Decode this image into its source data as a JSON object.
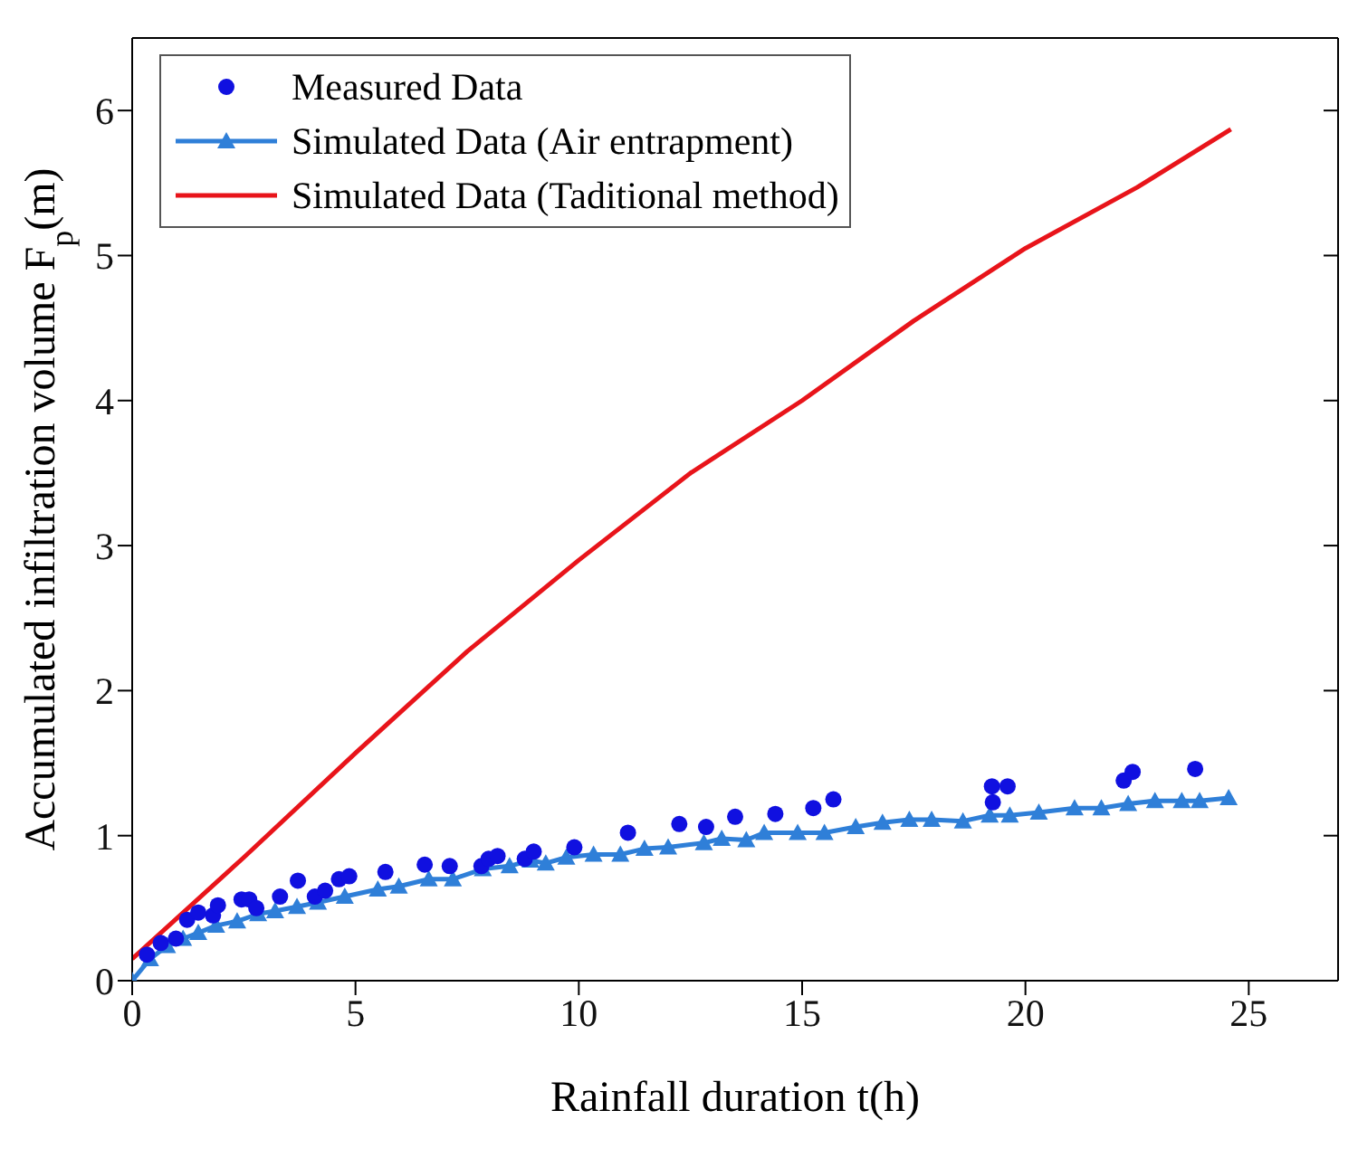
{
  "chart_data": {
    "type": "line",
    "xlabel": "Rainfall duration t(h)",
    "ylabel": "Accumulated infiltration volume F$_{p}$(m)",
    "xlim": [
      0,
      27
    ],
    "ylim": [
      0,
      6.5
    ],
    "xticks": [
      0,
      5,
      10,
      15,
      20,
      25
    ],
    "yticks": [
      0,
      1,
      2,
      3,
      4,
      5,
      6
    ],
    "grid": false,
    "legend": "top left",
    "series": [
      {
        "name": "Measured Data",
        "type": "scatter",
        "marker": "circle",
        "color": "#1010e0",
        "x": [
          0.33,
          0.64,
          0.98,
          1.23,
          1.48,
          1.81,
          1.92,
          2.45,
          2.62,
          2.78,
          3.31,
          3.71,
          4.09,
          4.32,
          4.63,
          4.86,
          5.67,
          6.55,
          7.11,
          7.82,
          7.98,
          8.18,
          8.79,
          8.99,
          9.9,
          11.1,
          12.25,
          12.85,
          13.5,
          14.4,
          15.25,
          15.7,
          19.25,
          19.27,
          19.6,
          22.2,
          22.4,
          23.8
        ],
        "values": [
          0.18,
          0.26,
          0.29,
          0.42,
          0.47,
          0.45,
          0.52,
          0.56,
          0.56,
          0.5,
          0.58,
          0.69,
          0.58,
          0.62,
          0.7,
          0.72,
          0.75,
          0.8,
          0.79,
          0.79,
          0.84,
          0.86,
          0.84,
          0.89,
          0.92,
          1.02,
          1.08,
          1.06,
          1.13,
          1.15,
          1.19,
          1.25,
          1.34,
          1.23,
          1.34,
          1.38,
          1.44,
          1.46
        ]
      },
      {
        "name": "Simulated Data (Air entrapment)",
        "marker": "triangle",
        "line_style": "solid",
        "color": "#2f7fd8",
        "x": [
          0,
          0.4,
          0.78,
          1.14,
          1.48,
          1.88,
          2.35,
          2.82,
          3.2,
          3.69,
          4.16,
          4.76,
          5.5,
          5.97,
          6.64,
          7.18,
          7.85,
          8.45,
          8.92,
          9.26,
          9.72,
          10.33,
          10.93,
          11.47,
          12.0,
          12.8,
          13.2,
          13.75,
          14.15,
          14.9,
          15.5,
          16.2,
          16.8,
          17.4,
          17.9,
          18.6,
          19.2,
          19.65,
          20.3,
          21.1,
          21.7,
          22.3,
          22.9,
          23.5,
          23.9,
          24.55
        ],
        "values": [
          0,
          0.15,
          0.24,
          0.29,
          0.33,
          0.38,
          0.41,
          0.46,
          0.48,
          0.51,
          0.54,
          0.58,
          0.63,
          0.65,
          0.7,
          0.7,
          0.77,
          0.79,
          0.83,
          0.81,
          0.85,
          0.87,
          0.87,
          0.91,
          0.92,
          0.95,
          0.98,
          0.97,
          1.02,
          1.02,
          1.02,
          1.06,
          1.09,
          1.11,
          1.11,
          1.1,
          1.14,
          1.14,
          1.16,
          1.19,
          1.19,
          1.22,
          1.24,
          1.24,
          1.24,
          1.26
        ]
      },
      {
        "name": "Simulated Data (Taditional method)",
        "marker": "none",
        "line_style": "solid",
        "color": "#e8141a",
        "x": [
          0,
          2.5,
          5,
          7.5,
          10,
          12.5,
          15,
          17.5,
          20,
          22.5,
          24.6
        ],
        "values": [
          0.15,
          0.85,
          1.57,
          2.27,
          2.9,
          3.5,
          4.0,
          4.55,
          5.05,
          5.47,
          5.87
        ]
      }
    ]
  }
}
